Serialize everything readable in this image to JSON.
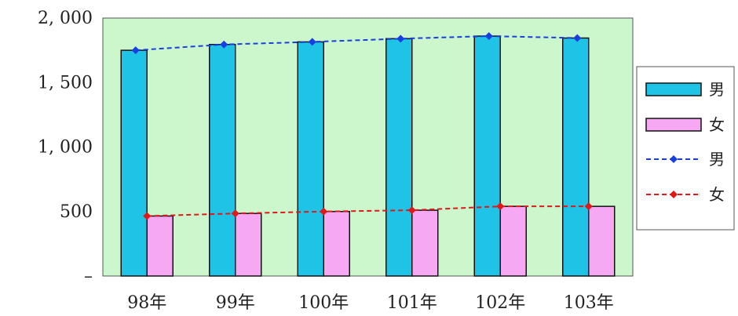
{
  "chart_data": {
    "type": "bar",
    "categories": [
      "98年",
      "99年",
      "100年",
      "101年",
      "102年",
      "103年"
    ],
    "series": [
      {
        "name": "男",
        "kind": "bar",
        "color": "#1ec3e6",
        "values": [
          1750,
          1795,
          1815,
          1840,
          1860,
          1845
        ]
      },
      {
        "name": "女",
        "kind": "bar",
        "color": "#f7a8f2",
        "values": [
          465,
          485,
          500,
          510,
          540,
          540
        ]
      },
      {
        "name": "男",
        "kind": "line",
        "style": "dashed",
        "marker": "diamond",
        "color": "#1a3fe0",
        "values": [
          1750,
          1795,
          1815,
          1840,
          1860,
          1845
        ]
      },
      {
        "name": "女",
        "kind": "line",
        "style": "dashed",
        "marker": "diamond",
        "color": "#e01818",
        "values": [
          465,
          485,
          500,
          510,
          540,
          540
        ]
      }
    ],
    "y_ticks": [
      "2, 000",
      "1, 500",
      "1, 000",
      "500",
      "–"
    ],
    "y_tick_values": [
      2000,
      1500,
      1000,
      500,
      0
    ],
    "ylim": [
      0,
      2000
    ],
    "title": "",
    "xlabel": "",
    "ylabel": "",
    "grid": false,
    "plot_background": "#ccf7cc",
    "legend_position": "right"
  }
}
